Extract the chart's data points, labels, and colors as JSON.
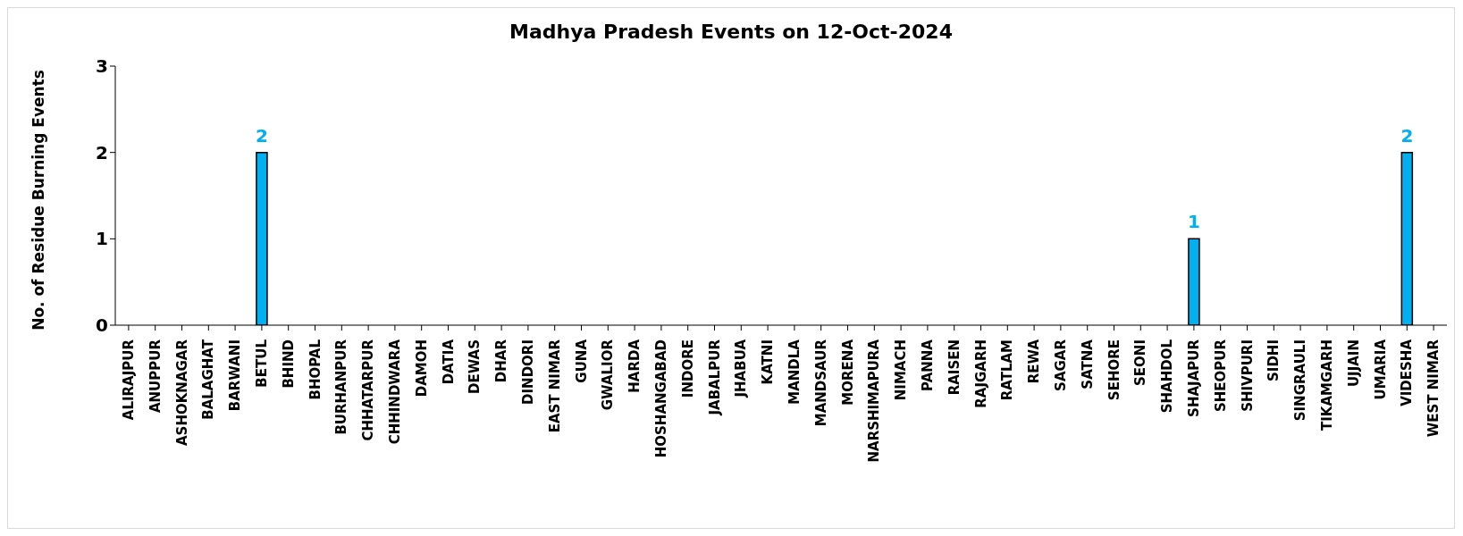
{
  "chart_data": {
    "type": "bar",
    "title": "Madhya Pradesh Events on 12-Oct-2024",
    "ylabel": "No. of Residue Burning Events",
    "categories": [
      "ALIRAJPUR",
      "ANUPPUR",
      "ASHOKNAGAR",
      "BALAGHAT",
      "BARWANI",
      "BETUL",
      "BHIND",
      "BHOPAL",
      "BURHANPUR",
      "CHHATARPUR",
      "CHHINDWARA",
      "DAMOH",
      "DATIA",
      "DEWAS",
      "DHAR",
      "DINDORI",
      "EAST NIMAR",
      "GUNA",
      "GWALIOR",
      "HARDA",
      "HOSHANGABAD",
      "INDORE",
      "JABALPUR",
      "JHABUA",
      "KATNI",
      "MANDLA",
      "MANDSAUR",
      "MORENA",
      "NARSHIMAPURA",
      "NIMACH",
      "PANNA",
      "RAISEN",
      "RAJGARH",
      "RATLAM",
      "REWA",
      "SAGAR",
      "SATNA",
      "SEHORE",
      "SEONI",
      "SHAHDOL",
      "SHAJAPUR",
      "SHEOPUR",
      "SHIVPURI",
      "SIDHI",
      "SINGRAULI",
      "TIKAMGARH",
      "UJJAIN",
      "UMARIA",
      "VIDESHA",
      "WEST NIMAR"
    ],
    "values": [
      0,
      0,
      0,
      0,
      0,
      2,
      0,
      0,
      0,
      0,
      0,
      0,
      0,
      0,
      0,
      0,
      0,
      0,
      0,
      0,
      0,
      0,
      0,
      0,
      0,
      0,
      0,
      0,
      0,
      0,
      0,
      0,
      0,
      0,
      0,
      0,
      0,
      0,
      0,
      0,
      1,
      0,
      0,
      0,
      0,
      0,
      0,
      0,
      2,
      0
    ],
    "value_labels": [
      null,
      null,
      null,
      null,
      null,
      "2",
      null,
      null,
      null,
      null,
      null,
      null,
      null,
      null,
      null,
      null,
      null,
      null,
      null,
      null,
      null,
      null,
      null,
      null,
      null,
      null,
      null,
      null,
      null,
      null,
      null,
      null,
      null,
      null,
      null,
      null,
      null,
      null,
      null,
      null,
      "1",
      null,
      null,
      null,
      null,
      null,
      null,
      null,
      "2",
      null
    ],
    "color": "#00b0f0",
    "ylim": [
      0,
      3
    ],
    "yticks": [
      0,
      1,
      2,
      3
    ],
    "grid": false,
    "legend": false
  }
}
